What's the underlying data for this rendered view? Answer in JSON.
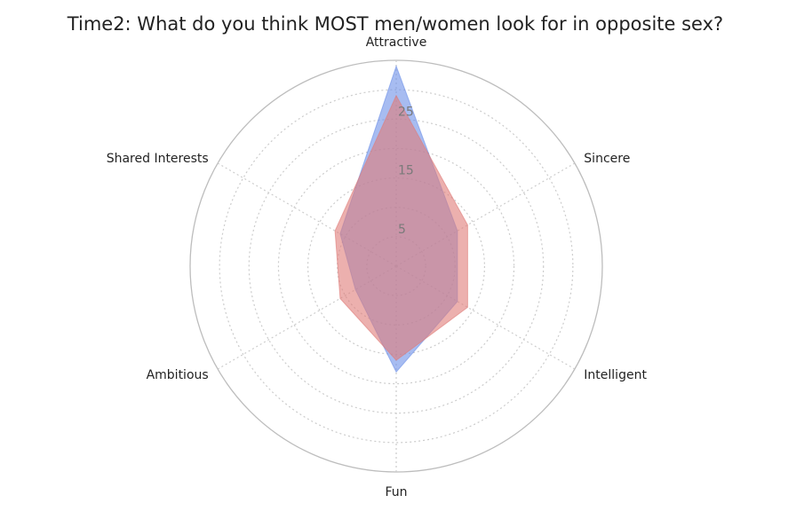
{
  "chart_data": {
    "type": "radar",
    "title": "Time2: What do you think MOST men/women look for in opposite sex?",
    "axes": [
      "Attractive",
      "Sincere",
      "Intelligent",
      "Fun",
      "Ambitious",
      "Shared Interests"
    ],
    "rlim": [
      0,
      35
    ],
    "ticks": [
      5,
      15,
      25
    ],
    "grid": true,
    "series": [
      {
        "color": "#6d8fe8",
        "values": [
          34,
          12,
          12,
          18,
          8,
          11
        ]
      },
      {
        "color": "#e07b78",
        "values": [
          29,
          14,
          14,
          16,
          11,
          12
        ]
      }
    ]
  }
}
